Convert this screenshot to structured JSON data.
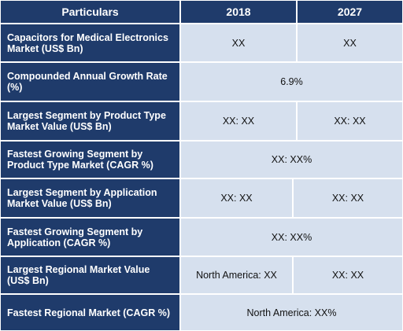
{
  "header": {
    "col0": "Particulars",
    "col1": "2018",
    "col2": "2027"
  },
  "rows": [
    {
      "label": "Capacitors for Medical Electronics Market (US$ Bn)",
      "v2018": "XX",
      "v2027": "XX"
    },
    {
      "label": "Compounded Annual Growth Rate (%)",
      "value": "6.9%"
    },
    {
      "label": "Largest Segment by Product Type Market Value (US$ Bn)",
      "v2018": "XX: XX",
      "v2027": "XX: XX"
    },
    {
      "label": "Fastest Growing Segment by Product Type Market (CAGR %)",
      "value": "XX: XX%"
    },
    {
      "label": "Largest Segment by Application Market Value (US$ Bn)",
      "v2018": "XX: XX",
      "v2027": "XX: XX"
    },
    {
      "label": "Fastest Growing Segment by Application (CAGR %)",
      "value": "XX: XX%"
    },
    {
      "label": "Largest Regional Market Value (US$ Bn)",
      "v2018": "North America: XX",
      "v2027": "XX: XX"
    },
    {
      "label": "Fastest Regional Market (CAGR %)",
      "value": "North America: XX%"
    }
  ],
  "colors": {
    "header_bg": "#1f3b6b",
    "cell_bg": "#d6e0ee"
  }
}
